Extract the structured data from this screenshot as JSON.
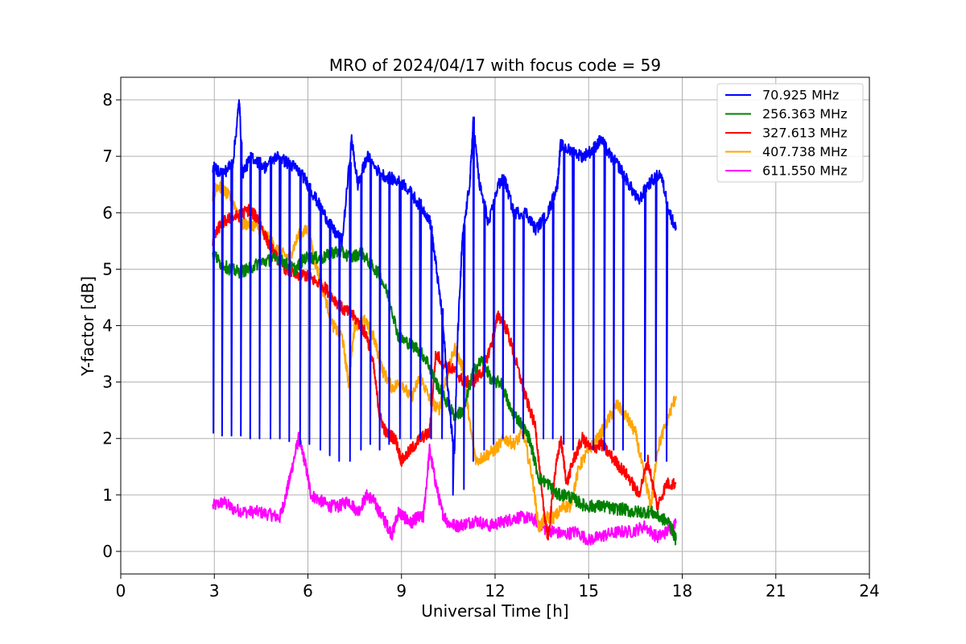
{
  "chart_data": {
    "type": "line",
    "title": "MRO of 2024/04/17 with focus code = 59",
    "xlabel": "Universal Time [h]",
    "ylabel": "Y-factor [dB]",
    "xlim": [
      0,
      24
    ],
    "ylim": [
      -0.4,
      8.4
    ],
    "xticks": [
      0,
      3,
      6,
      9,
      12,
      15,
      18,
      21,
      24
    ],
    "yticks": [
      0,
      1,
      2,
      3,
      4,
      5,
      6,
      7,
      8
    ],
    "grid": true,
    "legend_position": "top-right",
    "series": [
      {
        "name": " 70.925 MHz",
        "color": "#0000ff",
        "points": [
          [
            2.95,
            6.8
          ],
          [
            3.3,
            6.7
          ],
          [
            3.6,
            6.9
          ],
          [
            3.8,
            8.0
          ],
          [
            3.9,
            6.7
          ],
          [
            4.2,
            7.0
          ],
          [
            4.6,
            6.8
          ],
          [
            5.0,
            7.0
          ],
          [
            5.3,
            6.9
          ],
          [
            5.6,
            6.8
          ],
          [
            5.9,
            6.6
          ],
          [
            6.2,
            6.3
          ],
          [
            6.5,
            6.0
          ],
          [
            6.8,
            5.7
          ],
          [
            7.1,
            5.5
          ],
          [
            7.4,
            7.3
          ],
          [
            7.6,
            6.5
          ],
          [
            7.9,
            7.0
          ],
          [
            8.3,
            6.7
          ],
          [
            8.7,
            6.6
          ],
          [
            9.1,
            6.5
          ],
          [
            9.5,
            6.2
          ],
          [
            9.9,
            5.9
          ],
          [
            10.1,
            5.1
          ],
          [
            10.3,
            4.2
          ],
          [
            10.5,
            2.8
          ],
          [
            10.6,
            2.2
          ],
          [
            10.7,
            1.8
          ],
          [
            10.8,
            3.8
          ],
          [
            10.95,
            5.5
          ],
          [
            11.2,
            6.6
          ],
          [
            11.3,
            7.6
          ],
          [
            11.5,
            6.5
          ],
          [
            11.8,
            5.8
          ],
          [
            12.1,
            6.5
          ],
          [
            12.3,
            6.6
          ],
          [
            12.6,
            6.0
          ],
          [
            13.0,
            6.0
          ],
          [
            13.3,
            5.7
          ],
          [
            13.7,
            6.0
          ],
          [
            14.0,
            6.5
          ],
          [
            14.1,
            7.2
          ],
          [
            14.4,
            7.1
          ],
          [
            14.8,
            7.0
          ],
          [
            15.1,
            7.1
          ],
          [
            15.4,
            7.3
          ],
          [
            15.7,
            7.0
          ],
          [
            16.0,
            6.8
          ],
          [
            16.3,
            6.5
          ],
          [
            16.6,
            6.2
          ],
          [
            16.9,
            6.5
          ],
          [
            17.3,
            6.7
          ],
          [
            17.6,
            6.0
          ],
          [
            17.8,
            5.7
          ]
        ],
        "dips": [
          [
            2.97,
            2.1
          ],
          [
            3.25,
            2.05
          ],
          [
            3.55,
            2.05
          ],
          [
            3.85,
            2.05
          ],
          [
            4.15,
            2.0
          ],
          [
            4.45,
            2.0
          ],
          [
            4.8,
            2.0
          ],
          [
            5.1,
            2.0
          ],
          [
            5.4,
            1.95
          ],
          [
            5.75,
            1.9
          ],
          [
            6.05,
            1.9
          ],
          [
            6.4,
            1.8
          ],
          [
            6.7,
            1.7
          ],
          [
            7.0,
            1.6
          ],
          [
            7.35,
            1.6
          ],
          [
            7.7,
            1.8
          ],
          [
            8.0,
            1.9
          ],
          [
            8.3,
            1.8
          ],
          [
            8.6,
            1.9
          ],
          [
            8.95,
            2.0
          ],
          [
            9.3,
            2.0
          ],
          [
            9.6,
            2.0
          ],
          [
            9.95,
            2.0
          ],
          [
            10.3,
            2.0
          ],
          [
            10.65,
            1.0
          ],
          [
            11.0,
            1.1
          ],
          [
            11.3,
            1.6
          ],
          [
            11.65,
            1.8
          ],
          [
            11.95,
            1.9
          ],
          [
            12.25,
            2.0
          ],
          [
            12.6,
            2.1
          ],
          [
            12.9,
            2.0
          ],
          [
            13.2,
            2.1
          ],
          [
            13.55,
            2.0
          ],
          [
            13.85,
            2.0
          ],
          [
            14.2,
            1.9
          ],
          [
            14.5,
            1.8
          ],
          [
            14.85,
            1.8
          ],
          [
            15.15,
            1.8
          ],
          [
            15.5,
            1.8
          ],
          [
            15.8,
            1.8
          ],
          [
            16.1,
            1.8
          ],
          [
            16.45,
            1.7
          ],
          [
            16.8,
            1.6
          ],
          [
            17.15,
            1.6
          ],
          [
            17.5,
            1.6
          ],
          [
            17.8,
            1.7
          ]
        ]
      },
      {
        "name": "256.363 MHz",
        "color": "#008000",
        "points": [
          [
            2.95,
            5.3
          ],
          [
            3.2,
            5.1
          ],
          [
            3.5,
            5.0
          ],
          [
            3.8,
            4.95
          ],
          [
            4.1,
            5.0
          ],
          [
            4.4,
            5.1
          ],
          [
            4.7,
            5.15
          ],
          [
            5.0,
            5.2
          ],
          [
            5.3,
            5.1
          ],
          [
            5.6,
            5.0
          ],
          [
            5.9,
            5.2
          ],
          [
            6.2,
            5.2
          ],
          [
            6.5,
            5.2
          ],
          [
            6.8,
            5.3
          ],
          [
            7.1,
            5.3
          ],
          [
            7.4,
            5.2
          ],
          [
            7.7,
            5.3
          ],
          [
            8.0,
            5.1
          ],
          [
            8.3,
            4.9
          ],
          [
            8.6,
            4.5
          ],
          [
            8.9,
            3.8
          ],
          [
            9.2,
            3.7
          ],
          [
            9.5,
            3.6
          ],
          [
            9.8,
            3.4
          ],
          [
            10.1,
            3.0
          ],
          [
            10.4,
            2.7
          ],
          [
            10.7,
            2.4
          ],
          [
            11.0,
            2.5
          ],
          [
            11.3,
            3.2
          ],
          [
            11.6,
            3.4
          ],
          [
            11.9,
            3.0
          ],
          [
            12.2,
            3.0
          ],
          [
            12.5,
            2.5
          ],
          [
            12.8,
            2.3
          ],
          [
            13.1,
            2.0
          ],
          [
            13.4,
            1.3
          ],
          [
            13.7,
            1.2
          ],
          [
            14.0,
            1.0
          ],
          [
            14.3,
            1.0
          ],
          [
            14.6,
            0.9
          ],
          [
            14.9,
            0.8
          ],
          [
            15.2,
            0.8
          ],
          [
            15.5,
            0.8
          ],
          [
            15.8,
            0.75
          ],
          [
            16.1,
            0.75
          ],
          [
            16.4,
            0.7
          ],
          [
            16.7,
            0.7
          ],
          [
            17.0,
            0.7
          ],
          [
            17.3,
            0.6
          ],
          [
            17.6,
            0.5
          ],
          [
            17.8,
            0.2
          ]
        ]
      },
      {
        "name": "327.613 MHz",
        "color": "#ff0000",
        "points": [
          [
            2.95,
            5.5
          ],
          [
            3.2,
            5.8
          ],
          [
            3.5,
            5.9
          ],
          [
            3.8,
            5.95
          ],
          [
            4.1,
            6.05
          ],
          [
            4.4,
            5.9
          ],
          [
            4.7,
            5.5
          ],
          [
            5.0,
            5.2
          ],
          [
            5.3,
            5.0
          ],
          [
            5.6,
            4.9
          ],
          [
            5.9,
            4.9
          ],
          [
            6.2,
            4.8
          ],
          [
            6.5,
            4.7
          ],
          [
            6.8,
            4.5
          ],
          [
            7.1,
            4.3
          ],
          [
            7.4,
            4.2
          ],
          [
            7.7,
            4.0
          ],
          [
            7.9,
            3.8
          ],
          [
            8.1,
            3.3
          ],
          [
            8.3,
            2.4
          ],
          [
            8.5,
            2.1
          ],
          [
            8.8,
            2.0
          ],
          [
            9.0,
            1.6
          ],
          [
            9.3,
            1.8
          ],
          [
            9.6,
            2.0
          ],
          [
            9.9,
            2.1
          ],
          [
            10.1,
            3.5
          ],
          [
            10.4,
            3.3
          ],
          [
            10.7,
            3.2
          ],
          [
            11.0,
            3.0
          ],
          [
            11.3,
            3.0
          ],
          [
            11.6,
            3.2
          ],
          [
            11.9,
            3.7
          ],
          [
            12.1,
            4.2
          ],
          [
            12.4,
            3.9
          ],
          [
            12.7,
            3.3
          ],
          [
            13.0,
            2.7
          ],
          [
            13.3,
            2.2
          ],
          [
            13.5,
            1.0
          ],
          [
            13.7,
            0.2
          ],
          [
            13.9,
            1.3
          ],
          [
            14.1,
            2.0
          ],
          [
            14.3,
            1.2
          ],
          [
            14.5,
            1.6
          ],
          [
            14.8,
            2.0
          ],
          [
            15.1,
            1.8
          ],
          [
            15.4,
            1.9
          ],
          [
            15.7,
            1.7
          ],
          [
            16.0,
            1.5
          ],
          [
            16.3,
            1.3
          ],
          [
            16.6,
            1.0
          ],
          [
            16.9,
            1.6
          ],
          [
            17.2,
            0.8
          ],
          [
            17.5,
            1.2
          ],
          [
            17.8,
            1.2
          ]
        ]
      },
      {
        "name": "407.738 MHz",
        "color": "#ffa500",
        "points": [
          [
            2.95,
            6.3
          ],
          [
            3.1,
            6.5
          ],
          [
            3.3,
            6.4
          ],
          [
            3.6,
            6.2
          ],
          [
            3.9,
            5.8
          ],
          [
            4.2,
            5.8
          ],
          [
            4.5,
            5.7
          ],
          [
            4.8,
            5.5
          ],
          [
            5.1,
            5.3
          ],
          [
            5.4,
            5.2
          ],
          [
            5.7,
            5.6
          ],
          [
            6.0,
            5.7
          ],
          [
            6.2,
            5.2
          ],
          [
            6.5,
            4.6
          ],
          [
            6.8,
            4.0
          ],
          [
            7.1,
            3.8
          ],
          [
            7.3,
            3.0
          ],
          [
            7.5,
            4.0
          ],
          [
            7.8,
            4.1
          ],
          [
            8.1,
            3.8
          ],
          [
            8.4,
            3.2
          ],
          [
            8.7,
            2.9
          ],
          [
            9.0,
            3.0
          ],
          [
            9.3,
            2.7
          ],
          [
            9.6,
            3.1
          ],
          [
            9.9,
            2.7
          ],
          [
            10.2,
            2.5
          ],
          [
            10.4,
            3.0
          ],
          [
            10.7,
            3.6
          ],
          [
            11.0,
            3.2
          ],
          [
            11.2,
            2.2
          ],
          [
            11.4,
            1.6
          ],
          [
            11.7,
            1.7
          ],
          [
            12.0,
            1.8
          ],
          [
            12.3,
            2.0
          ],
          [
            12.6,
            1.9
          ],
          [
            12.9,
            2.1
          ],
          [
            13.2,
            1.3
          ],
          [
            13.4,
            0.4
          ],
          [
            13.6,
            0.6
          ],
          [
            13.9,
            0.6
          ],
          [
            14.2,
            0.8
          ],
          [
            14.4,
            0.8
          ],
          [
            14.7,
            1.5
          ],
          [
            15.0,
            1.8
          ],
          [
            15.3,
            2.0
          ],
          [
            15.6,
            2.3
          ],
          [
            15.9,
            2.6
          ],
          [
            16.2,
            2.4
          ],
          [
            16.5,
            2.1
          ],
          [
            16.8,
            1.3
          ],
          [
            17.0,
            0.8
          ],
          [
            17.2,
            1.8
          ],
          [
            17.5,
            2.3
          ],
          [
            17.8,
            2.75
          ]
        ]
      },
      {
        "name": "611.550 MHz",
        "color": "#ff00ff",
        "points": [
          [
            2.95,
            0.8
          ],
          [
            3.3,
            0.88
          ],
          [
            3.6,
            0.75
          ],
          [
            4.0,
            0.7
          ],
          [
            4.4,
            0.7
          ],
          [
            4.8,
            0.65
          ],
          [
            5.1,
            0.6
          ],
          [
            5.3,
            1.0
          ],
          [
            5.5,
            1.5
          ],
          [
            5.7,
            2.0
          ],
          [
            5.9,
            1.6
          ],
          [
            6.1,
            1.0
          ],
          [
            6.4,
            0.9
          ],
          [
            6.7,
            0.8
          ],
          [
            7.0,
            0.8
          ],
          [
            7.3,
            0.9
          ],
          [
            7.6,
            0.7
          ],
          [
            7.9,
            1.0
          ],
          [
            8.1,
            0.9
          ],
          [
            8.3,
            0.7
          ],
          [
            8.5,
            0.5
          ],
          [
            8.7,
            0.3
          ],
          [
            8.9,
            0.7
          ],
          [
            9.1,
            0.6
          ],
          [
            9.3,
            0.5
          ],
          [
            9.5,
            0.6
          ],
          [
            9.7,
            0.6
          ],
          [
            9.9,
            1.8
          ],
          [
            10.1,
            1.2
          ],
          [
            10.3,
            0.7
          ],
          [
            10.5,
            0.5
          ],
          [
            10.8,
            0.45
          ],
          [
            11.1,
            0.5
          ],
          [
            11.4,
            0.55
          ],
          [
            11.8,
            0.45
          ],
          [
            12.1,
            0.5
          ],
          [
            12.4,
            0.55
          ],
          [
            12.7,
            0.6
          ],
          [
            13.0,
            0.6
          ],
          [
            13.3,
            0.55
          ],
          [
            13.6,
            0.4
          ],
          [
            13.9,
            0.35
          ],
          [
            14.2,
            0.3
          ],
          [
            14.6,
            0.35
          ],
          [
            15.0,
            0.2
          ],
          [
            15.3,
            0.25
          ],
          [
            15.6,
            0.3
          ],
          [
            16.0,
            0.35
          ],
          [
            16.4,
            0.35
          ],
          [
            16.8,
            0.45
          ],
          [
            17.2,
            0.25
          ],
          [
            17.5,
            0.35
          ],
          [
            17.8,
            0.5
          ]
        ]
      }
    ]
  }
}
